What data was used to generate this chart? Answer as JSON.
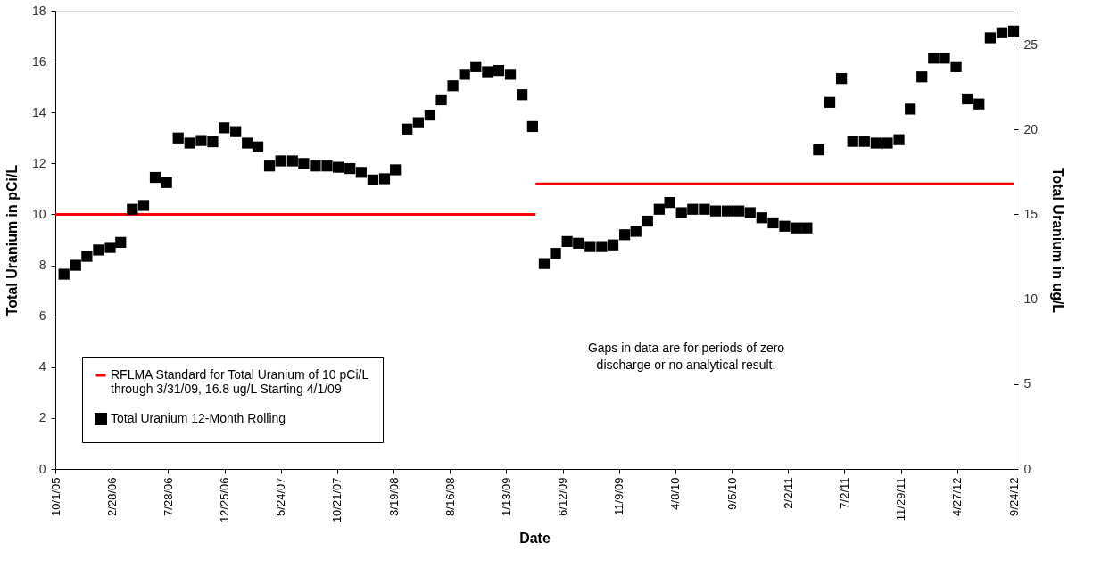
{
  "chart_data": {
    "type": "scatter",
    "xlabel": "Date",
    "ylabel": "Total Uranium in pCi/L",
    "y2label": "Total Uranium in ug/L",
    "xlim": [
      "2005-10-01",
      "2012-09-24"
    ],
    "xticks": [
      {
        "value": "2005-10-01",
        "label": "10/1/05"
      },
      {
        "value": "2006-02-28",
        "label": "2/28/06"
      },
      {
        "value": "2006-07-28",
        "label": "7/28/06"
      },
      {
        "value": "2006-12-25",
        "label": "12/25/06"
      },
      {
        "value": "2007-05-24",
        "label": "5/24/07"
      },
      {
        "value": "2007-10-21",
        "label": "10/21/07"
      },
      {
        "value": "2008-03-19",
        "label": "3/19/08"
      },
      {
        "value": "2008-08-16",
        "label": "8/16/08"
      },
      {
        "value": "2009-01-13",
        "label": "1/13/09"
      },
      {
        "value": "2009-06-12",
        "label": "6/12/09"
      },
      {
        "value": "2009-11-09",
        "label": "11/9/09"
      },
      {
        "value": "2010-04-08",
        "label": "4/8/10"
      },
      {
        "value": "2010-09-05",
        "label": "9/5/10"
      },
      {
        "value": "2011-02-02",
        "label": "2/2/11"
      },
      {
        "value": "2011-07-02",
        "label": "7/2/11"
      },
      {
        "value": "2011-11-29",
        "label": "11/29/11"
      },
      {
        "value": "2012-04-27",
        "label": "4/27/12"
      },
      {
        "value": "2012-09-24",
        "label": "9/24/12"
      }
    ],
    "ylim": [
      0,
      18
    ],
    "yticks": [
      0,
      2,
      4,
      6,
      8,
      10,
      12,
      14,
      16,
      18
    ],
    "y2lim": [
      0,
      27
    ],
    "y2ticks": [
      0,
      5,
      10,
      15,
      20,
      25
    ],
    "grid": false,
    "legend": "bottom left",
    "series": [
      {
        "name": "RFLMA Standard for Total Uranium of 10 pCi/L through 3/31/09, 16.8 ug/L Starting 4/1/09",
        "type": "line",
        "line_style": "solid",
        "marker": "none",
        "color": "#ff0000",
        "x": [
          "2005-10-01",
          "2009-04-01"
        ],
        "values": [
          10,
          10
        ]
      },
      {
        "type": "line",
        "line_style": "solid",
        "marker": "none",
        "axis": "y2",
        "color": "#ff0000",
        "x": [
          "2009-04-01",
          "2012-09-24"
        ],
        "values": [
          16.8,
          16.8
        ]
      },
      {
        "name": "Total Uranium 12-Month Rolling",
        "marker": "square",
        "color": "#000000",
        "x": [
          "2005-10-24",
          "2005-11-24",
          "2005-12-24",
          "2006-01-24",
          "2006-02-24",
          "2006-03-24",
          "2006-04-24",
          "2006-05-24",
          "2006-06-24",
          "2006-07-24",
          "2006-08-24",
          "2006-09-24",
          "2006-10-24",
          "2006-11-24",
          "2006-12-24",
          "2007-01-24",
          "2007-02-24",
          "2007-03-24",
          "2007-04-24",
          "2007-05-24",
          "2007-06-24",
          "2007-07-24",
          "2007-08-24",
          "2007-09-24",
          "2007-10-24",
          "2007-11-24",
          "2007-12-24",
          "2008-01-24",
          "2008-02-24",
          "2008-03-24",
          "2008-04-24",
          "2008-05-24",
          "2008-06-24",
          "2008-07-24",
          "2008-08-24",
          "2008-09-24",
          "2008-10-24",
          "2008-11-24",
          "2008-12-24",
          "2009-01-24",
          "2009-02-24",
          "2009-03-24"
        ],
        "values": [
          7.65,
          8.0,
          8.35,
          8.6,
          8.7,
          8.9,
          10.2,
          10.35,
          11.45,
          11.25,
          13.0,
          12.8,
          12.9,
          12.85,
          13.4,
          13.25,
          12.8,
          12.65,
          11.9,
          12.1,
          12.1,
          12.0,
          11.9,
          11.9,
          11.85,
          11.8,
          11.65,
          11.35,
          11.4,
          11.75,
          13.35,
          13.6,
          13.9,
          14.5,
          15.05,
          15.5,
          15.8,
          15.6,
          15.65,
          15.5,
          14.7,
          13.45
        ]
      },
      {
        "marker": "square",
        "axis": "y2",
        "color": "#000000",
        "x": [
          "2009-04-24",
          "2009-05-24",
          "2009-06-24",
          "2009-07-24",
          "2009-08-24",
          "2009-09-24",
          "2009-10-24",
          "2009-11-24",
          "2009-12-24",
          "2010-01-24",
          "2010-02-24",
          "2010-03-24",
          "2010-04-24",
          "2010-05-24",
          "2010-06-24",
          "2010-07-24",
          "2010-08-24",
          "2010-09-24",
          "2010-10-24",
          "2010-11-24",
          "2010-12-24",
          "2011-01-24",
          "2011-02-24",
          "2011-03-24",
          "2011-04-24",
          "2011-05-24",
          "2011-06-24",
          "2011-07-24",
          "2011-08-24",
          "2011-09-24",
          "2011-10-24",
          "2011-11-24",
          "2011-12-24",
          "2012-01-24",
          "2012-02-24",
          "2012-03-24",
          "2012-04-24",
          "2012-05-24",
          "2012-06-24",
          "2012-07-24",
          "2012-08-24",
          "2012-09-24"
        ],
        "values": [
          12.1,
          12.7,
          13.4,
          13.3,
          13.1,
          13.1,
          13.2,
          13.8,
          14.0,
          14.6,
          15.3,
          15.7,
          15.1,
          15.3,
          15.3,
          15.2,
          15.2,
          15.2,
          15.1,
          14.8,
          14.5,
          14.3,
          14.2,
          14.2,
          18.8,
          21.6,
          23.0,
          19.3,
          19.3,
          19.2,
          19.2,
          19.4,
          21.2,
          23.1,
          24.2,
          24.2,
          23.7,
          21.8,
          21.5,
          25.4,
          25.7,
          25.8
        ]
      }
    ],
    "annotations": [
      "Gaps in data are for periods of zero discharge or no analytical result."
    ]
  }
}
